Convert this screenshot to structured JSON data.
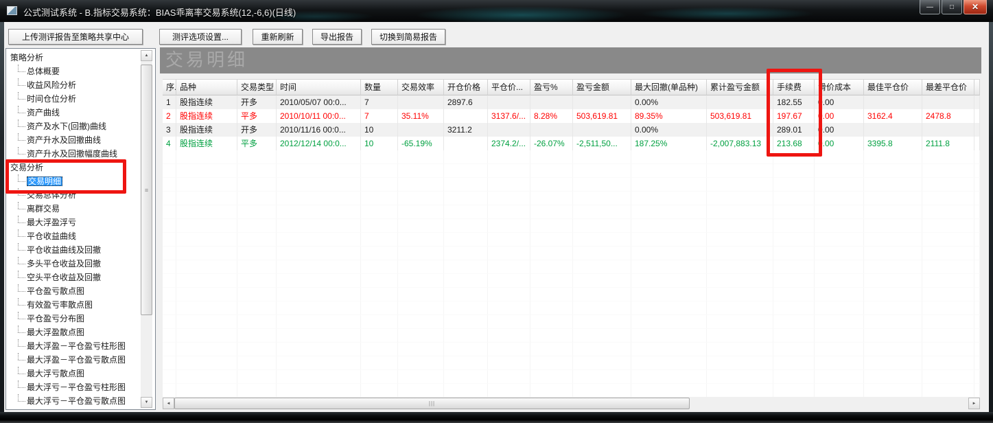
{
  "window": {
    "title": "公式测试系统 - B.指标交易系统：BIAS乖离率交易系统(12,-6,6)(日线)"
  },
  "icons": {
    "minimize": "—",
    "maximize": "□",
    "close": "✕",
    "arrow_up": "▲",
    "arrow_down": "▼",
    "arrow_left": "◄",
    "arrow_right": "►",
    "v_grip": "≡",
    "h_grip": "|||"
  },
  "toolbar": {
    "buttons": [
      "上传测评报告至策略共享中心",
      "测评选项设置...",
      "重新刷新",
      "导出报告",
      "切换到简易报告"
    ]
  },
  "sidebar": {
    "items": [
      {
        "label": "策略分析",
        "level": 1,
        "selected": false
      },
      {
        "label": "总体概要",
        "level": 2,
        "selected": false
      },
      {
        "label": "收益风险分析",
        "level": 2,
        "selected": false
      },
      {
        "label": "时间仓位分析",
        "level": 2,
        "selected": false
      },
      {
        "label": "资产曲线",
        "level": 2,
        "selected": false
      },
      {
        "label": "资产及水下(回撤)曲线",
        "level": 2,
        "selected": false
      },
      {
        "label": "资产升水及回撤曲线",
        "level": 2,
        "selected": false
      },
      {
        "label": "资产升水及回撤幅度曲线",
        "level": 2,
        "selected": false
      },
      {
        "label": "交易分析",
        "level": 1,
        "selected": false
      },
      {
        "label": "交易明细",
        "level": 2,
        "selected": true
      },
      {
        "label": "交易总体分析",
        "level": 2,
        "selected": false
      },
      {
        "label": "离群交易",
        "level": 2,
        "selected": false
      },
      {
        "label": "最大浮盈浮亏",
        "level": 2,
        "selected": false
      },
      {
        "label": "平仓收益曲线",
        "level": 2,
        "selected": false
      },
      {
        "label": "平仓收益曲线及回撤",
        "level": 2,
        "selected": false
      },
      {
        "label": "多头平仓收益及回撤",
        "level": 2,
        "selected": false
      },
      {
        "label": "空头平仓收益及回撤",
        "level": 2,
        "selected": false
      },
      {
        "label": "平仓盈亏散点图",
        "level": 2,
        "selected": false
      },
      {
        "label": "有效盈亏率散点图",
        "level": 2,
        "selected": false
      },
      {
        "label": "平仓盈亏分布图",
        "level": 2,
        "selected": false
      },
      {
        "label": "最大浮盈散点图",
        "level": 2,
        "selected": false
      },
      {
        "label": "最大浮盈－平仓盈亏柱形图",
        "level": 2,
        "selected": false
      },
      {
        "label": "最大浮盈－平仓盈亏散点图",
        "level": 2,
        "selected": false
      },
      {
        "label": "最大浮亏散点图",
        "level": 2,
        "selected": false
      },
      {
        "label": "最大浮亏－平仓盈亏柱形图",
        "level": 2,
        "selected": false
      },
      {
        "label": "最大浮亏－平仓盈亏散点图",
        "level": 2,
        "selected": false
      }
    ]
  },
  "main": {
    "title": "交易明细",
    "table": {
      "columns": [
        "序..",
        "品种",
        "交易类型",
        "时间",
        "数量",
        "交易效率",
        "开仓价格",
        "平仓价...",
        "盈亏%",
        "盈亏金额",
        "最大回撤(单品种)",
        "累计盈亏金额",
        "手续费",
        "滑价成本",
        "最佳平仓价",
        "最差平仓价",
        ""
      ],
      "rows": [
        {
          "color": "#1a1a1a",
          "cells": [
            "1",
            "股指连续",
            "开多",
            "2010/05/07 00:0...",
            "7",
            "",
            "2897.6",
            "",
            "",
            "",
            "0.00%",
            "",
            "182.55",
            "0.00",
            "",
            "",
            ""
          ]
        },
        {
          "color": "#ff0000",
          "cells": [
            "2",
            "股指连续",
            "平多",
            "2010/10/11 00:0...",
            "7",
            "35.11%",
            "",
            "3137.6/...",
            "8.28%",
            "503,619.81",
            "89.35%",
            "503,619.81",
            "197.67",
            "0.00",
            "3162.4",
            "2478.8",
            ""
          ]
        },
        {
          "color": "#1a1a1a",
          "cells": [
            "3",
            "股指连续",
            "开多",
            "2010/11/16 00:0...",
            "10",
            "",
            "3211.2",
            "",
            "",
            "",
            "0.00%",
            "",
            "289.01",
            "0.00",
            "",
            "",
            ""
          ]
        },
        {
          "color": "#00a040",
          "cells": [
            "4",
            "股指连续",
            "平多",
            "2012/12/14 00:0...",
            "10",
            "-65.19%",
            "",
            "2374.2/...",
            "-26.07%",
            "-2,511,50...",
            "187.25%",
            "-2,007,883.13",
            "213.68",
            "0.00",
            "3395.8",
            "2111.8",
            ""
          ]
        }
      ]
    }
  },
  "colors": {
    "selection_blue": "#2e9afe",
    "annotation_red": "#ee1511",
    "profit_red": "#ff0000",
    "loss_green": "#00a040",
    "panel_header_bg": "#898989"
  }
}
